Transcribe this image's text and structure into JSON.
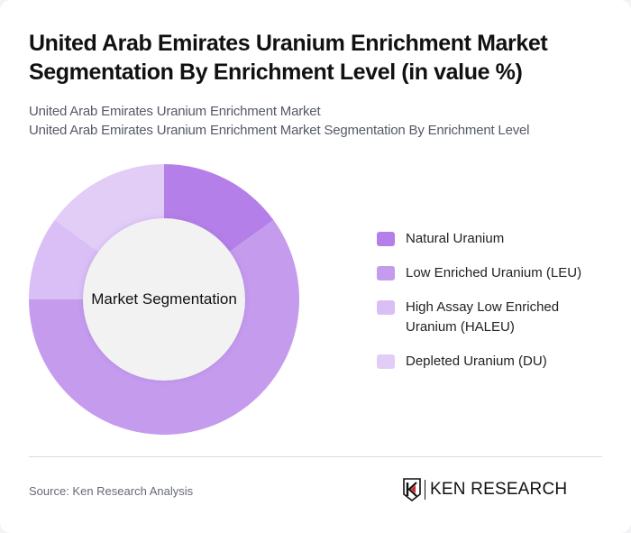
{
  "header": {
    "title": "United Arab Emirates Uranium Enrichment Market Segmentation By Enrichment Level (in value %)",
    "subtitle_line1": "United Arab Emirates Uranium Enrichment Market",
    "subtitle_line2": "United Arab Emirates Uranium Enrichment Market Segmentation By Enrichment Level"
  },
  "chart": {
    "center_label": "Market Segmentation"
  },
  "legend": {
    "items": [
      {
        "label": "Natural Uranium",
        "color": "#b47fe8"
      },
      {
        "label": "Low Enriched Uranium (LEU)",
        "color": "#c59bee"
      },
      {
        "label": "High Assay Low Enriched Uranium (HALEU)",
        "color": "#d9bff5"
      },
      {
        "label": "Depleted Uranium (DU)",
        "color": "#e2cdf7"
      }
    ]
  },
  "footer": {
    "source": "Source: Ken Research Analysis",
    "logo_text": "KEN RESEARCH"
  },
  "chart_data": {
    "type": "pie",
    "subtype": "donut",
    "title": "United Arab Emirates Uranium Enrichment Market Segmentation By Enrichment Level (in value %)",
    "center_label": "Market Segmentation",
    "categories": [
      "Natural Uranium",
      "Low Enriched Uranium (LEU)",
      "High Assay Low Enriched Uranium (HALEU)",
      "Depleted Uranium (DU)"
    ],
    "values": [
      15,
      60,
      10,
      15
    ],
    "colors": [
      "#b47fe8",
      "#c59bee",
      "#d9bff5",
      "#e2cdf7"
    ],
    "start_angle_deg": 0,
    "direction": "clockwise",
    "legend_position": "right",
    "data_labels": false
  }
}
